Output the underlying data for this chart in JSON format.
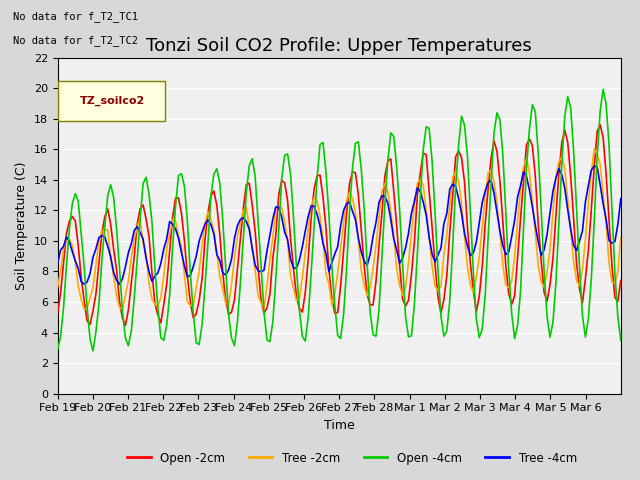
{
  "title": "Tonzi Soil CO2 Profile: Upper Temperatures",
  "ylabel": "Soil Temperature (C)",
  "xlabel": "Time",
  "annotations": [
    "No data for f_T2_TC1",
    "No data for f_T2_TC2"
  ],
  "legend_label": "TZ_soilco2",
  "ylim": [
    0,
    22
  ],
  "yticks": [
    0,
    2,
    4,
    6,
    8,
    10,
    12,
    14,
    16,
    18,
    20,
    22
  ],
  "xtick_labels": [
    "Feb 19",
    "Feb 20",
    "Feb 21",
    "Feb 22",
    "Feb 23",
    "Feb 24",
    "Feb 25",
    "Feb 26",
    "Feb 27",
    "Feb 28",
    "Mar 1",
    "Mar 2",
    "Mar 3",
    "Mar 4",
    "Mar 5",
    "Mar 6"
  ],
  "line_colors": [
    "#ff0000",
    "#ffaa00",
    "#00cc00",
    "#0000ff"
  ],
  "line_labels": [
    "Open -2cm",
    "Tree -2cm",
    "Open -4cm",
    "Tree -4cm"
  ],
  "plot_bg_color": "#f0f0f0",
  "title_fontsize": 13,
  "axis_fontsize": 9,
  "tick_fontsize": 8
}
